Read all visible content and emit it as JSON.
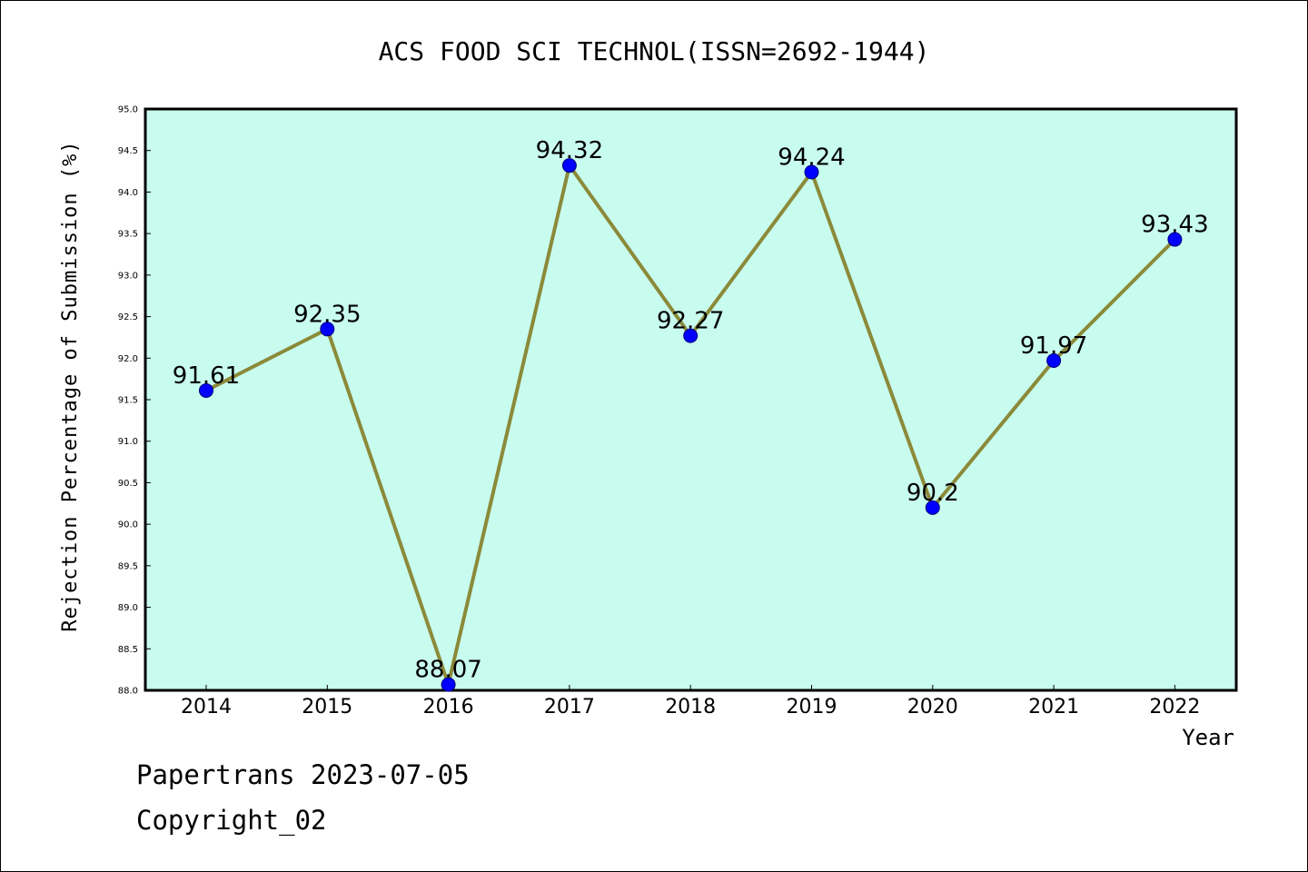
{
  "chart_data": {
    "type": "line",
    "title": "ACS FOOD SCI TECHNOL(ISSN=2692-1944)",
    "xlabel": "Year",
    "ylabel": "Rejection Percentage of Submission (%)",
    "categories": [
      "2014",
      "2015",
      "2016",
      "2017",
      "2018",
      "2019",
      "2020",
      "2021",
      "2022"
    ],
    "values": [
      91.61,
      92.35,
      88.07,
      94.32,
      92.27,
      94.24,
      90.2,
      91.97,
      93.43
    ],
    "data_labels": [
      "91.61",
      "92.35",
      "88.07",
      "94.32",
      "92.27",
      "94.24",
      "90.2",
      "91.97",
      "93.43"
    ],
    "ylim": [
      88.0,
      95.0
    ],
    "yticks": [
      "88.0",
      "88.5",
      "89.0",
      "89.5",
      "90.0",
      "90.5",
      "91.0",
      "91.5",
      "92.0",
      "92.5",
      "93.0",
      "93.5",
      "94.0",
      "94.5",
      "95.0"
    ],
    "grid": false,
    "legend": "none",
    "colors": {
      "plot_background": "#c8fcee",
      "line": "#8b8a3a",
      "marker": "#0000ff"
    }
  },
  "footer": {
    "line1": "Papertrans 2023-07-05",
    "line2": "Copyright_02"
  }
}
